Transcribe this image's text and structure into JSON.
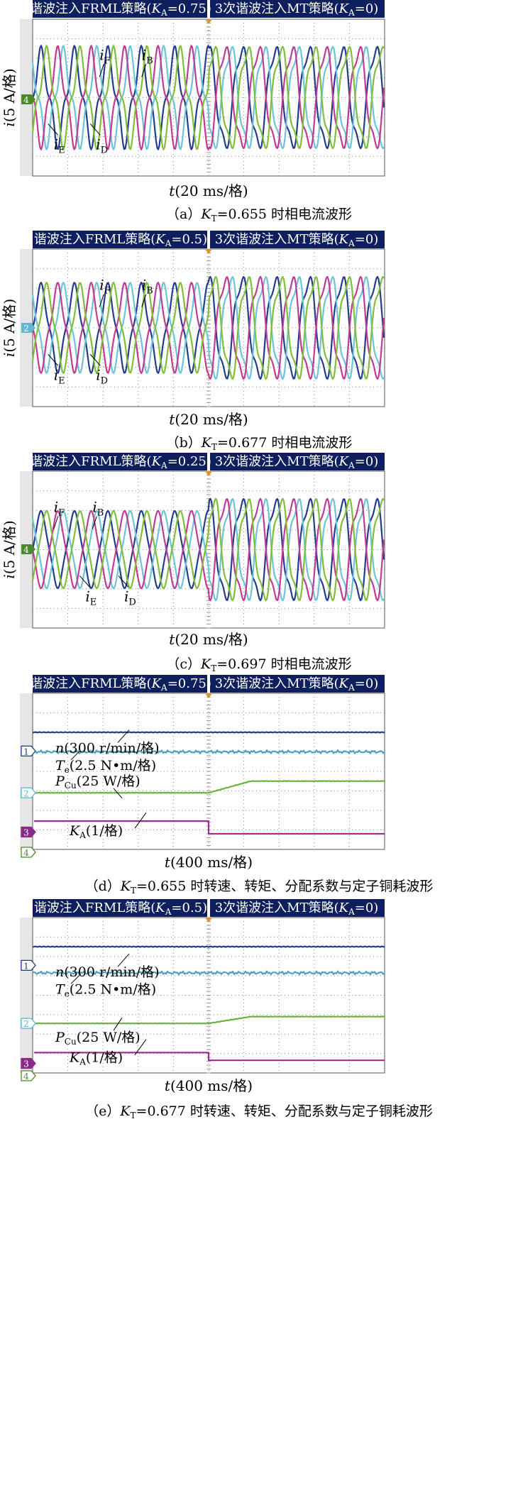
{
  "colors": {
    "banner_bg": "#0d1f5c",
    "banner_text": "#ffffff",
    "scope_bg": "#ffffff",
    "grid": "#8c8c8c",
    "ch_F": "#233d8a",
    "ch_B": "#6fc3d8",
    "ch_D": "#c03b95",
    "ch_E": "#7fbf3a",
    "ch_n": "#233d8a",
    "ch_Te": "#4fa3c0",
    "ch_PCu": "#6db33f",
    "ch_KA": "#9b2f8f",
    "marker_orange": "#e0952b",
    "ref_green": "#4a8a2a",
    "ref_cyan": "#5fb7d4",
    "ref_purple": "#8a2a8a",
    "ref_navy": "#1f3b8a"
  },
  "chart_data": [
    {
      "id": "a",
      "type": "line",
      "banner_left": "谐波注入FRML策略(",
      "banner_left_sym": "K",
      "banner_left_sub": "A",
      "banner_left_val": "=0.75)",
      "banner_right": "3次谐波注入MT策略(",
      "banner_right_sym": "K",
      "banner_right_sub": "A",
      "banner_right_val": "=0)",
      "ylabel_italic": "i",
      "ylabel_rest": "(5 A/格)",
      "xlabel_italic": "t",
      "xlabel_rest": "(20 ms/格)",
      "ref_marker": "4",
      "caption_pre": "（a）",
      "caption_sym": "K",
      "caption_sub": "T",
      "caption_post": "=0.655 时相电流波形",
      "switch_div": 5,
      "ka_left": 0.75,
      "series": [
        {
          "name": "iF",
          "sym": "i",
          "sub": "F"
        },
        {
          "name": "iB",
          "sym": "i",
          "sub": "B"
        },
        {
          "name": "iE",
          "sym": "i",
          "sub": "E"
        },
        {
          "name": "iD",
          "sym": "i",
          "sub": "D"
        }
      ]
    },
    {
      "id": "b",
      "type": "line",
      "banner_left": "谐波注入FRML策略(",
      "banner_left_sym": "K",
      "banner_left_sub": "A",
      "banner_left_val": "=0.5)",
      "banner_right": "3次谐波注入MT策略(",
      "banner_right_sym": "K",
      "banner_right_sub": "A",
      "banner_right_val": "=0)",
      "ylabel_italic": "i",
      "ylabel_rest": "(5 A/格)",
      "xlabel_italic": "t",
      "xlabel_rest": "(20 ms/格)",
      "ref_marker": "2",
      "caption_pre": "（b）",
      "caption_sym": "K",
      "caption_sub": "T",
      "caption_post": "=0.677 时相电流波形",
      "switch_div": 5,
      "ka_left": 0.5,
      "series": [
        {
          "name": "iF",
          "sym": "i",
          "sub": "F"
        },
        {
          "name": "iB",
          "sym": "i",
          "sub": "B"
        },
        {
          "name": "iE",
          "sym": "i",
          "sub": "E"
        },
        {
          "name": "iD",
          "sym": "i",
          "sub": "D"
        }
      ]
    },
    {
      "id": "c",
      "type": "line",
      "banner_left": "谐波注入FRML策略(",
      "banner_left_sym": "K",
      "banner_left_sub": "A",
      "banner_left_val": "=0.25)",
      "banner_right": "3次谐波注入MT策略(",
      "banner_right_sym": "K",
      "banner_right_sub": "A",
      "banner_right_val": "=0)",
      "ylabel_italic": "i",
      "ylabel_rest": "(5 A/格)",
      "xlabel_italic": "t",
      "xlabel_rest": "(20 ms/格)",
      "ref_marker": "4",
      "caption_pre": "（c）",
      "caption_sym": "K",
      "caption_sub": "T",
      "caption_post": "=0.697 时相电流波形",
      "switch_div": 5,
      "ka_left": 0.25,
      "series": [
        {
          "name": "iF",
          "sym": "i",
          "sub": "F"
        },
        {
          "name": "iB",
          "sym": "i",
          "sub": "B"
        },
        {
          "name": "iE",
          "sym": "i",
          "sub": "E"
        },
        {
          "name": "iD",
          "sym": "i",
          "sub": "D"
        }
      ]
    },
    {
      "id": "d",
      "type": "line",
      "banner_left": "谐波注入FRML策略(",
      "banner_left_sym": "K",
      "banner_left_sub": "A",
      "banner_left_val": "=0.75)",
      "banner_right": "3次谐波注入MT策略(",
      "banner_right_sym": "K",
      "banner_right_sub": "A",
      "banner_right_val": "=0)",
      "xlabel_italic": "t",
      "xlabel_rest": "(400 ms/格)",
      "ref_markers": [
        "1",
        "2",
        "3",
        "4"
      ],
      "caption_pre": "（d）",
      "caption_sym": "K",
      "caption_sub": "T",
      "caption_post": "=0.655 时转速、转矩、分配系数与定子铜耗波形",
      "switch_div": 5,
      "series": [
        {
          "name": "n",
          "label": "n(300 r/min/格)",
          "left_div": 2.0,
          "right_div": 2.0
        },
        {
          "name": "Te",
          "label": "Te(2.5 N•m/格)",
          "left_div": 3.0,
          "right_div": 3.0
        },
        {
          "name": "PCu",
          "label": "PCu(25 W/格)",
          "left_div": 5.1,
          "right_div": 4.5
        },
        {
          "name": "KA",
          "label": "KA(1/格)",
          "left_div": 6.55,
          "right_div": 7.2
        }
      ],
      "labels": {
        "n_sym": "n",
        "n_rest": "(300 r/min/格)",
        "te_sym": "T",
        "te_sub": "e",
        "te_rest": "(2.5 N•m/格)",
        "pcu_sym": "P",
        "pcu_sub": "Cu",
        "pcu_rest": "(25 W/格)",
        "ka_sym": "K",
        "ka_sub": "A",
        "ka_rest": "(1/格)"
      }
    },
    {
      "id": "e",
      "type": "line",
      "banner_left": "谐波注入FRML策略(",
      "banner_left_sym": "K",
      "banner_left_sub": "A",
      "banner_left_val": "=0.5)",
      "banner_right": "3次谐波注入MT策略(",
      "banner_right_sym": "K",
      "banner_right_sub": "A",
      "banner_right_val": "=0)",
      "xlabel_italic": "t",
      "xlabel_rest": "(400 ms/格)",
      "ref_markers": [
        "1",
        "2",
        "3",
        "4"
      ],
      "caption_pre": "（e）",
      "caption_sym": "K",
      "caption_sub": "T",
      "caption_post": "=0.677 时转速、转矩、分配系数与定子铜耗波形",
      "switch_div": 5,
      "series": [
        {
          "name": "n",
          "label": "n(300 r/min/格)",
          "left_div": 1.5,
          "right_div": 1.5
        },
        {
          "name": "Te",
          "label": "Te(2.5 N•m/格)",
          "left_div": 2.85,
          "right_div": 2.85
        },
        {
          "name": "PCu",
          "label": "PCu(25 W/格)",
          "left_div": 5.45,
          "right_div": 5.1
        },
        {
          "name": "KA",
          "label": "KA(1/格)",
          "left_div": 6.95,
          "right_div": 7.35
        }
      ],
      "labels": {
        "n_sym": "n",
        "n_rest": "(300 r/min/格)",
        "te_sym": "T",
        "te_sub": "e",
        "te_rest": "(2.5 N•m/格)",
        "pcu_sym": "P",
        "pcu_sub": "Cu",
        "pcu_rest": "(25 W/格)",
        "ka_sym": "K",
        "ka_sub": "A",
        "ka_rest": "(1/格)"
      }
    }
  ]
}
